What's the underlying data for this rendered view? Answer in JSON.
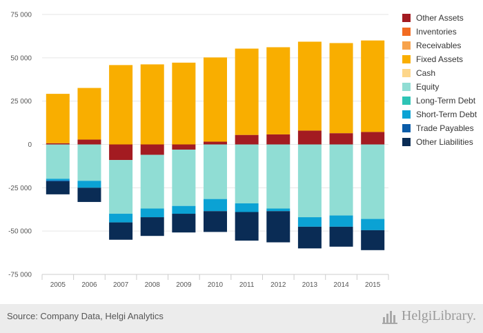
{
  "chart_data": {
    "type": "bar",
    "stacked": true,
    "categories": [
      "2005",
      "2006",
      "2007",
      "2008",
      "2009",
      "2010",
      "2011",
      "2012",
      "2013",
      "2014",
      "2015"
    ],
    "ylim": [
      -75000,
      75000
    ],
    "yticks": [
      75000,
      50000,
      25000,
      0,
      -25000,
      -50000,
      -75000
    ],
    "ytick_labels": [
      "75 000",
      "50 000",
      "25 000",
      "0",
      "-25 000",
      "-50 000",
      "-75 000"
    ],
    "grid": true,
    "legend_position": "right",
    "series": [
      {
        "name": "Other Assets",
        "color": "#a31b21",
        "values": [
          700,
          2800,
          -9000,
          -6000,
          -3000,
          1600,
          5500,
          5800,
          8000,
          6500,
          7200
        ]
      },
      {
        "name": "Inventories",
        "color": "#f26b21",
        "values": [
          0,
          0,
          0,
          0,
          0,
          0,
          0,
          0,
          0,
          0,
          0
        ]
      },
      {
        "name": "Receivables",
        "color": "#f7a24c",
        "values": [
          0,
          0,
          0,
          0,
          0,
          0,
          0,
          0,
          0,
          0,
          0
        ]
      },
      {
        "name": "Fixed Assets",
        "color": "#f9ae00",
        "values": [
          28500,
          29800,
          45800,
          46200,
          47200,
          48600,
          49800,
          50300,
          51300,
          52000,
          52800
        ]
      },
      {
        "name": "Cash",
        "color": "#fdd68a",
        "values": [
          0,
          0,
          0,
          0,
          0,
          0,
          0,
          0,
          0,
          0,
          0
        ]
      },
      {
        "name": "Equity",
        "color": "#90ddd4",
        "values": [
          -19800,
          -21000,
          -31000,
          -31000,
          -32500,
          -31500,
          -34000,
          -37000,
          -42000,
          -41000,
          -43000
        ]
      },
      {
        "name": "Long-Term Debt",
        "color": "#2ec4b6",
        "values": [
          0,
          0,
          0,
          0,
          0,
          0,
          0,
          0,
          0,
          0,
          0
        ]
      },
      {
        "name": "Short-Term Debt",
        "color": "#0ba2d4",
        "values": [
          -1000,
          -4000,
          -5000,
          -5000,
          -4500,
          -7000,
          -5000,
          -1500,
          -5500,
          -6500,
          -6500
        ]
      },
      {
        "name": "Trade Payables",
        "color": "#0a5ca8",
        "values": [
          -500,
          0,
          0,
          0,
          0,
          0,
          0,
          0,
          0,
          0,
          0
        ]
      },
      {
        "name": "Other Liabilities",
        "color": "#0a2c55",
        "values": [
          -7500,
          -8200,
          -10000,
          -10800,
          -10800,
          -12000,
          -16500,
          -18000,
          -12500,
          -11500,
          -11500
        ]
      }
    ]
  },
  "footer": {
    "source": "Source: Company Data, Helgi Analytics",
    "brand": "HelgiLibrary."
  }
}
